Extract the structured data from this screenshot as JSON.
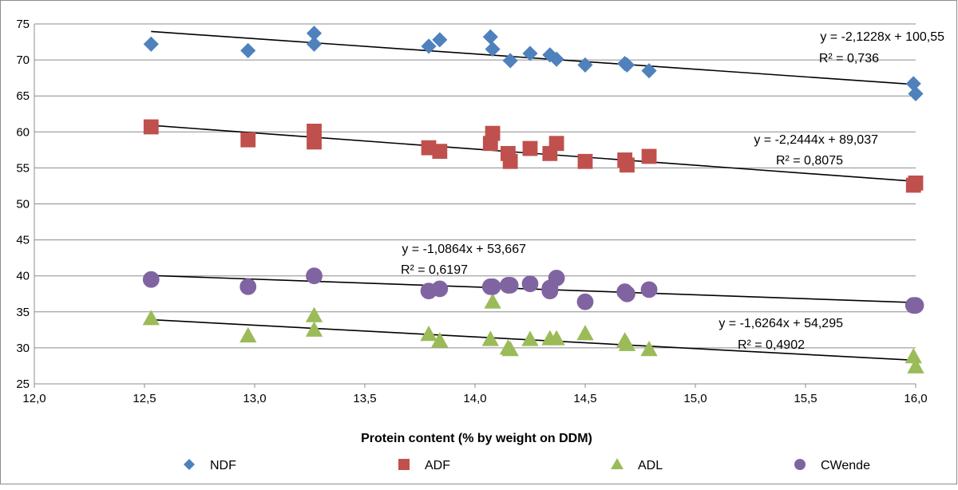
{
  "chart_data": {
    "type": "scatter",
    "title": "",
    "xlabel": "Protein content  (% by weight on DDM)",
    "ylabel": "",
    "xlim": [
      12.0,
      16.0
    ],
    "ylim": [
      25,
      75
    ],
    "xticks": [
      12.0,
      12.5,
      13.0,
      13.5,
      14.0,
      14.5,
      15.0,
      15.5,
      16.0
    ],
    "xtick_labels": [
      "12,0",
      "12,5",
      "13,0",
      "13,5",
      "14,0",
      "14,5",
      "15,0",
      "15,5",
      "16,0"
    ],
    "yticks": [
      25,
      30,
      35,
      40,
      45,
      50,
      55,
      60,
      65,
      70,
      75
    ],
    "ytick_labels": [
      "25",
      "30",
      "35",
      "40",
      "45",
      "50",
      "55",
      "60",
      "65",
      "70",
      "75"
    ],
    "grid": true,
    "legend_position": "bottom",
    "series": [
      {
        "name": "NDF",
        "marker": "diamond",
        "color": "#4f81bd",
        "x": [
          12.53,
          12.97,
          13.27,
          13.27,
          13.79,
          13.84,
          14.07,
          14.08,
          14.16,
          14.25,
          14.34,
          14.37,
          14.5,
          14.68,
          14.69,
          14.79,
          15.99,
          16.0
        ],
        "y": [
          72.2,
          71.3,
          73.7,
          72.2,
          71.9,
          72.8,
          73.2,
          71.5,
          69.9,
          70.9,
          70.7,
          70.1,
          69.3,
          69.5,
          69.3,
          68.5,
          66.7,
          65.3
        ],
        "trendline": {
          "slope": -2.1228,
          "intercept": 100.55,
          "equation": "y = -2,1228x + 100,55",
          "r2": "R² = 0,736"
        }
      },
      {
        "name": "ADF",
        "marker": "square",
        "color": "#c0504d",
        "x": [
          12.53,
          12.97,
          13.27,
          13.27,
          13.79,
          13.84,
          14.07,
          14.08,
          14.15,
          14.16,
          14.25,
          14.34,
          14.37,
          14.5,
          14.68,
          14.69,
          14.79,
          15.99,
          16.0
        ],
        "y": [
          60.7,
          58.9,
          60.1,
          58.6,
          57.8,
          57.3,
          58.4,
          59.8,
          57.0,
          55.9,
          57.7,
          57.0,
          58.4,
          55.9,
          56.1,
          55.4,
          56.6,
          52.6,
          52.9
        ],
        "trendline": {
          "slope": -2.2444,
          "intercept": 89.037,
          "equation": "y = -2,2444x + 89,037",
          "r2": "R² = 0,8075"
        }
      },
      {
        "name": "ADL",
        "marker": "triangle",
        "color": "#9bbb59",
        "x": [
          12.53,
          12.97,
          13.27,
          13.27,
          13.79,
          13.84,
          14.07,
          14.08,
          14.15,
          14.16,
          14.25,
          14.34,
          14.37,
          14.5,
          14.68,
          14.69,
          14.79,
          15.99,
          16.0
        ],
        "y": [
          34.0,
          31.6,
          34.4,
          32.4,
          31.8,
          30.9,
          31.1,
          36.3,
          29.9,
          29.7,
          31.1,
          31.2,
          31.2,
          31.9,
          30.9,
          30.4,
          29.7,
          28.7,
          27.3
        ],
        "trendline": {
          "slope": -1.6264,
          "intercept": 54.295,
          "equation": "y = -1,6264x + 54,295",
          "r2": "R² = 0,4902"
        }
      },
      {
        "name": "CWende",
        "marker": "circle",
        "color": "#8064a2",
        "x": [
          12.53,
          12.97,
          13.27,
          13.79,
          13.84,
          14.07,
          14.08,
          14.15,
          14.16,
          14.25,
          14.34,
          14.34,
          14.37,
          14.5,
          14.68,
          14.69,
          14.79,
          15.99,
          16.0
        ],
        "y": [
          39.5,
          38.5,
          40.0,
          37.9,
          38.2,
          38.5,
          38.5,
          38.7,
          38.7,
          38.9,
          37.9,
          38.3,
          39.7,
          36.4,
          37.8,
          37.5,
          38.1,
          35.9,
          35.9
        ],
        "trendline": {
          "slope": -1.0864,
          "intercept": 53.667,
          "equation": "y = -1,0864x + 53,667",
          "r2": "R² = 0,6197"
        }
      }
    ]
  }
}
